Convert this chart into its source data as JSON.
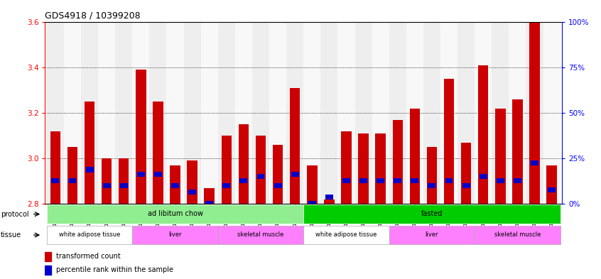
{
  "title": "GDS4918 / 10399208",
  "samples": [
    "GSM1131278",
    "GSM1131279",
    "GSM1131280",
    "GSM1131281",
    "GSM1131282",
    "GSM1131283",
    "GSM1131284",
    "GSM1131285",
    "GSM1131286",
    "GSM1131287",
    "GSM1131288",
    "GSM1131289",
    "GSM1131290",
    "GSM1131291",
    "GSM1131292",
    "GSM1131293",
    "GSM1131294",
    "GSM1131295",
    "GSM1131296",
    "GSM1131297",
    "GSM1131298",
    "GSM1131299",
    "GSM1131300",
    "GSM1131301",
    "GSM1131302",
    "GSM1131303",
    "GSM1131304",
    "GSM1131305",
    "GSM1131306",
    "GSM1131307"
  ],
  "red_values": [
    3.12,
    3.05,
    3.25,
    3.0,
    3.0,
    3.39,
    3.25,
    2.97,
    2.99,
    2.87,
    3.1,
    3.15,
    3.1,
    3.06,
    3.31,
    2.97,
    2.82,
    3.12,
    3.11,
    3.11,
    3.17,
    3.22,
    3.05,
    3.35,
    3.07,
    3.41,
    3.22,
    3.26,
    3.6,
    2.97
  ],
  "blue_values": [
    2.9,
    2.9,
    2.95,
    2.88,
    2.88,
    2.93,
    2.93,
    2.88,
    2.85,
    2.8,
    2.88,
    2.9,
    2.92,
    2.88,
    2.93,
    2.8,
    2.83,
    2.9,
    2.9,
    2.9,
    2.9,
    2.9,
    2.88,
    2.9,
    2.88,
    2.92,
    2.9,
    2.9,
    2.98,
    2.86
  ],
  "ymin": 2.8,
  "ymax": 3.6,
  "yticks": [
    2.8,
    3.0,
    3.2,
    3.4,
    3.6
  ],
  "right_yticks": [
    0,
    25,
    50,
    75,
    100
  ],
  "right_yticklabels": [
    "0%",
    "25%",
    "50%",
    "75%",
    "100%"
  ],
  "protocol_labels": [
    "ad libitum chow",
    "fasted"
  ],
  "protocol_ranges": [
    [
      0,
      14
    ],
    [
      15,
      29
    ]
  ],
  "protocol_colors": [
    "#90EE90",
    "#00CC00"
  ],
  "tissue_labels": [
    "white adipose tissue",
    "liver",
    "skeletal muscle",
    "white adipose tissue",
    "liver",
    "skeletal muscle"
  ],
  "tissue_ranges": [
    [
      0,
      4
    ],
    [
      5,
      9
    ],
    [
      10,
      14
    ],
    [
      15,
      19
    ],
    [
      20,
      24
    ],
    [
      25,
      29
    ]
  ],
  "tissue_colors": [
    "#ffffff",
    "#FF80FF",
    "#FF80FF",
    "#ffffff",
    "#FF80FF",
    "#FF80FF"
  ],
  "red_color": "#CC0000",
  "blue_color": "#0000CC",
  "bar_width": 0.6
}
